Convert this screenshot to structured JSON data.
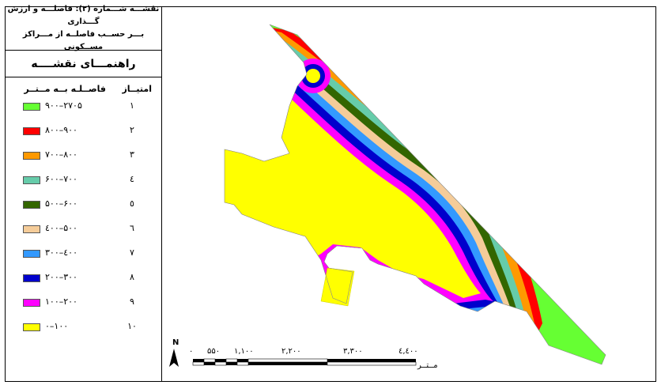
{
  "legend": {
    "title_line1": "نقشـــه شـــماره (۲): فاصلـــه و ارزش گـــذاری",
    "title_line2": "بـــر حســب فاصلــه از مـــراکز مســکونی",
    "heading": "راهنمـــای نقشــــه",
    "col_score": "امتیــاز",
    "col_distance": "فاصــلـه بــه مــتــر",
    "classes": [
      {
        "range": "۹۰۰–۲۷۰۵",
        "score": "۱",
        "color": "#66ff33"
      },
      {
        "range": "۸۰۰–۹۰۰",
        "score": "۲",
        "color": "#ff0000"
      },
      {
        "range": "۷۰۰–۸۰۰",
        "score": "۳",
        "color": "#ff9900"
      },
      {
        "range": "۶۰۰–۷۰۰",
        "score": "٤",
        "color": "#66ccaa"
      },
      {
        "range": "۵۰۰–۶۰۰",
        "score": "٥",
        "color": "#336600"
      },
      {
        "range": "٤۰۰–۵۰۰",
        "score": "٦",
        "color": "#f5cc99"
      },
      {
        "range": "۳۰۰–٤۰۰",
        "score": "٧",
        "color": "#3399ff"
      },
      {
        "range": "۲۰۰–۳۰۰",
        "score": "٨",
        "color": "#0000cc"
      },
      {
        "range": "۱۰۰–۲۰۰",
        "score": "٩",
        "color": "#ff00ff"
      },
      {
        "range": "۰–۱۰۰",
        "score": "۱۰",
        "color": "#ffff00"
      }
    ]
  },
  "scalebar": {
    "ticks": [
      "۰",
      "۵۵۰",
      "۱,۱۰۰",
      "۲,۲۰۰",
      "۳,۳۰۰",
      "٤,٤۰۰"
    ],
    "unit": "مــتــر"
  },
  "north": {
    "label": "N"
  }
}
